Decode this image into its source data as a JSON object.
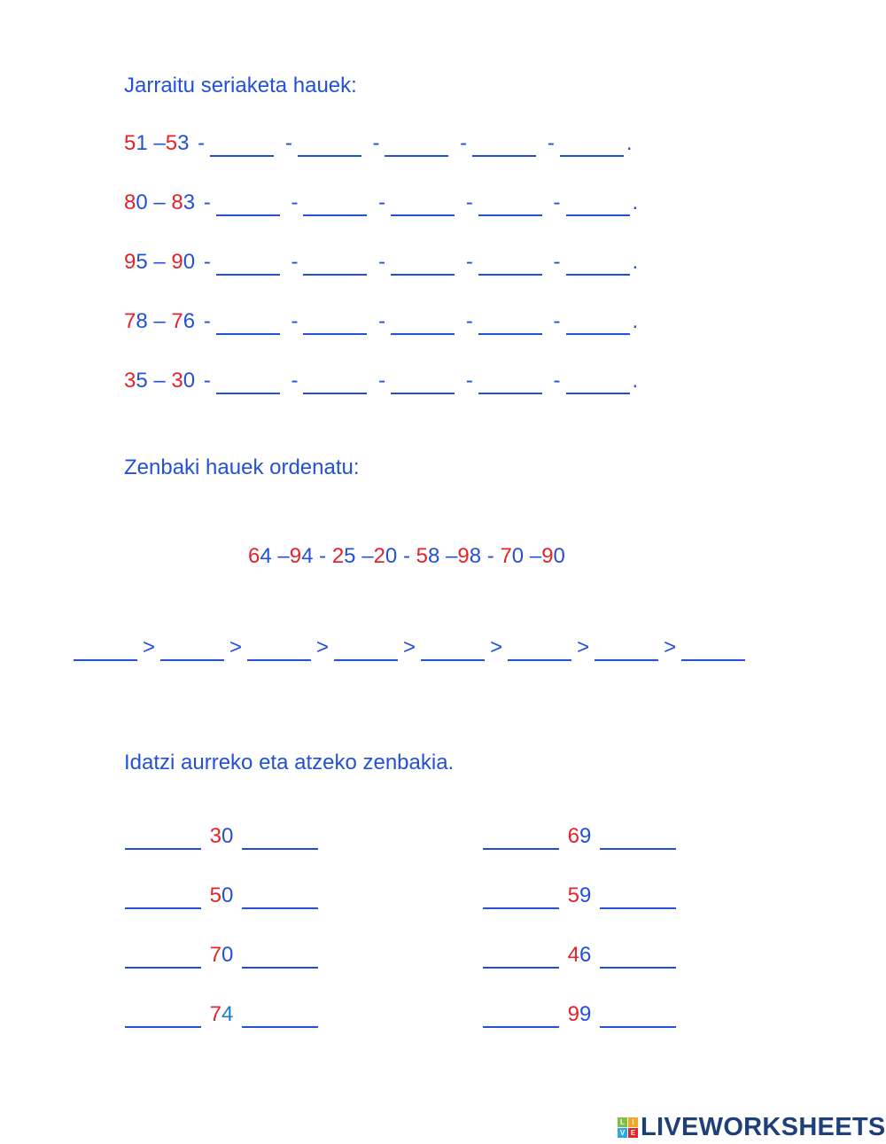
{
  "colors": {
    "text": "#2350d8",
    "tens": "#e5222b",
    "ones_alt": "#1a7fc0"
  },
  "section1": {
    "title": "Jarraitu seriaketa hauek:",
    "rows": [
      {
        "a": "51",
        "sep": "–",
        "b": "53"
      },
      {
        "a": "80",
        "sep": "–",
        "b": "83"
      },
      {
        "a": "95",
        "sep": "–",
        "b": "90"
      },
      {
        "a": "78",
        "sep": "–",
        "b": "76"
      },
      {
        "a": "35",
        "sep": "–",
        "b": "30"
      }
    ],
    "dash": "-",
    "end": "."
  },
  "section2": {
    "title": "Zenbaki hauek ordenatu:",
    "numbers": [
      "64",
      "94",
      "25",
      "20",
      "58",
      "98",
      "70",
      "90"
    ],
    "separators": [
      "–",
      "-",
      "–",
      "-",
      "–",
      "-",
      "–"
    ],
    "comparator": ">"
  },
  "section3": {
    "title": "Idatzi aurreko eta atzeko zenbakia.",
    "left": [
      "30",
      "50",
      "70",
      "74"
    ],
    "right": [
      "69",
      "59",
      "46",
      "99"
    ]
  },
  "logo": {
    "text": "LIVEWORKSHEETS",
    "tiles": [
      "L",
      "I",
      "V",
      "E"
    ]
  }
}
